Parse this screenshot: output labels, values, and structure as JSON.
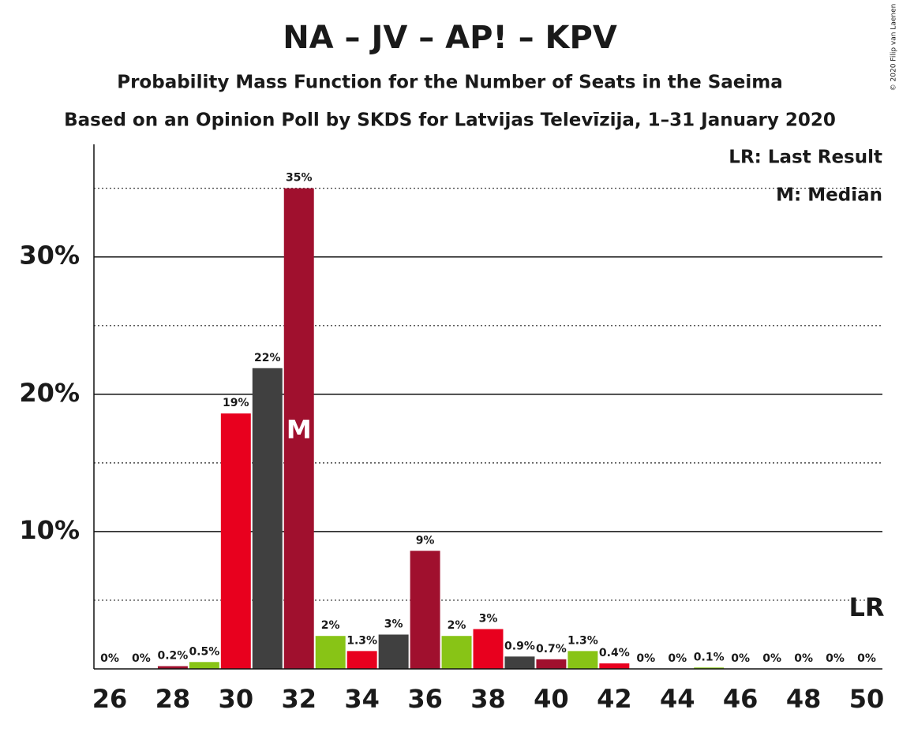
{
  "chart_data": {
    "type": "bar",
    "title": "NA – JV – AP! – KPV",
    "subtitle": "Probability Mass Function for the Number of Seats in the Saeima",
    "subtitle2": "Based on an Opinion Poll by SKDS for Latvijas Televīzija, 1–31 January 2020",
    "copyright": "© 2020 Filip van Laenen",
    "x": [
      26,
      27,
      28,
      29,
      30,
      31,
      32,
      33,
      34,
      35,
      36,
      37,
      38,
      39,
      40,
      41,
      42,
      43,
      44,
      45,
      46,
      47,
      48,
      49,
      50
    ],
    "values": [
      0,
      0,
      0.2,
      0.5,
      18.6,
      21.9,
      35,
      2.4,
      1.3,
      2.5,
      8.6,
      2.4,
      2.9,
      0.9,
      0.7,
      1.3,
      0.4,
      0,
      0,
      0.1,
      0,
      0,
      0,
      0,
      0
    ],
    "value_labels": [
      "0%",
      "0%",
      "0.2%",
      "0.5%",
      "19%",
      "22%",
      "35%",
      "2%",
      "1.3%",
      "3%",
      "9%",
      "2%",
      "3%",
      "0.9%",
      "0.7%",
      "1.3%",
      "0.4%",
      "0%",
      "0%",
      "0.1%",
      "0%",
      "0%",
      "0%",
      "0%",
      "0%"
    ],
    "colors": [
      "#e8001e",
      "#404040",
      "#a0102e",
      "#88c416",
      "#e8001e",
      "#404040",
      "#a0102e",
      "#88c416",
      "#e8001e",
      "#404040",
      "#a0102e",
      "#88c416",
      "#e8001e",
      "#404040",
      "#a0102e",
      "#88c416",
      "#e8001e",
      "#404040",
      "#a0102e",
      "#88c416",
      "#e8001e",
      "#404040",
      "#a0102e",
      "#88c416",
      "#e8001e"
    ],
    "xlim": [
      25.5,
      50.5
    ],
    "xticks": [
      26,
      28,
      30,
      32,
      34,
      36,
      38,
      40,
      42,
      44,
      46,
      48,
      50
    ],
    "ylim": [
      0,
      38.2
    ],
    "yticks": [
      {
        "value": 10,
        "label": "10%"
      },
      {
        "value": 20,
        "label": "20%"
      },
      {
        "value": 30,
        "label": "30%"
      }
    ],
    "minor_gridlines": [
      5,
      15,
      25,
      35
    ],
    "median_seat": 32,
    "median_label": "M",
    "last_result_seat": 50,
    "last_result_label": "LR",
    "legend": [
      "LR: Last Result",
      "M: Median"
    ]
  }
}
